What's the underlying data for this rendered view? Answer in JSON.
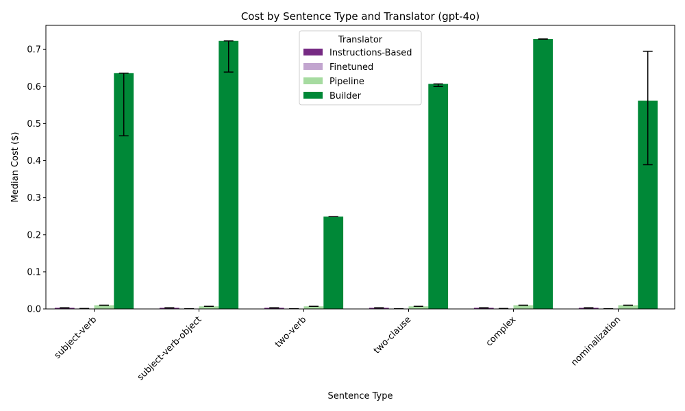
{
  "chart_data": {
    "type": "bar",
    "title": "Cost by Sentence Type and Translator (gpt-4o)",
    "xlabel": "Sentence Type",
    "ylabel": "Median Cost ($)",
    "ylim": [
      0,
      0.765
    ],
    "yticks": [
      "0.0",
      "0.1",
      "0.2",
      "0.3",
      "0.4",
      "0.5",
      "0.6",
      "0.7"
    ],
    "categories": [
      "subject-verb",
      "subject-verb-object",
      "two-verb",
      "two-clause",
      "complex",
      "nominalization"
    ],
    "legend": {
      "title": "Translator",
      "placement": "top-center"
    },
    "series": [
      {
        "name": "Instructions-Based",
        "color": "#762a83",
        "values": [
          0.003,
          0.003,
          0.003,
          0.003,
          0.003,
          0.003
        ],
        "err_low": [
          0.003,
          0.003,
          0.003,
          0.003,
          0.003,
          0.003
        ],
        "err_high": [
          0.003,
          0.003,
          0.003,
          0.003,
          0.003,
          0.003
        ]
      },
      {
        "name": "Finetuned",
        "color": "#c2a5cf",
        "values": [
          0.001,
          0.0005,
          0.0005,
          0.0005,
          0.001,
          0.0005
        ],
        "err_low": [
          0.001,
          0.0005,
          0.0005,
          0.0005,
          0.001,
          0.0005
        ],
        "err_high": [
          0.001,
          0.0005,
          0.0005,
          0.0005,
          0.001,
          0.0005
        ]
      },
      {
        "name": "Pipeline",
        "color": "#a6dba0",
        "values": [
          0.01,
          0.007,
          0.007,
          0.007,
          0.01,
          0.01
        ],
        "err_low": [
          0.01,
          0.007,
          0.007,
          0.007,
          0.01,
          0.01
        ],
        "err_high": [
          0.01,
          0.007,
          0.007,
          0.007,
          0.01,
          0.01
        ]
      },
      {
        "name": "Builder",
        "color": "#008837",
        "values": [
          0.636,
          0.723,
          0.249,
          0.607,
          0.728,
          0.562
        ],
        "err_low": [
          0.467,
          0.639,
          0.249,
          0.6,
          0.728,
          0.389
        ],
        "err_high": [
          0.636,
          0.723,
          0.249,
          0.607,
          0.728,
          0.695
        ]
      }
    ]
  }
}
